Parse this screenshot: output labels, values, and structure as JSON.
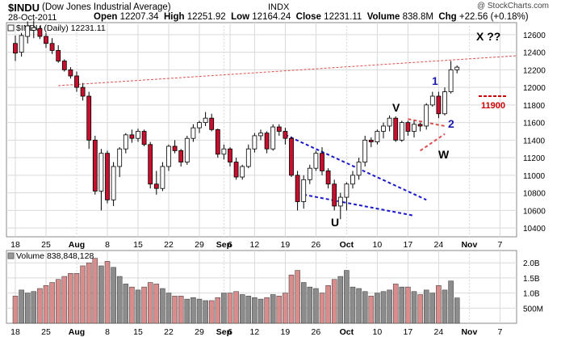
{
  "header": {
    "ticker": "$INDU",
    "name": "(Dow Jones Industrial Average)",
    "exchange": "INDX",
    "date": "28-Oct-2011",
    "open_label": "Open",
    "open": "12207.34",
    "high_label": "High",
    "high": "12251.92",
    "low_label": "Low",
    "low": "12164.24",
    "close_label": "Close",
    "close": "12231.11",
    "volume_label": "Volume",
    "volume": "838.8M",
    "chg_label": "Chg",
    "chg": "+22.56 (+0.18%)",
    "credit": "@ StockCharts.com"
  },
  "chart_data": {
    "type": "candlestick",
    "price_legend": "$INDU (Daily) 12231.11",
    "volume_legend": "Volume 838,848,128",
    "ylim": [
      10300,
      12700
    ],
    "y_ticks": [
      10400,
      10600,
      10800,
      11000,
      11200,
      11400,
      11600,
      11800,
      12000,
      12200,
      12400,
      12600
    ],
    "vol_ticks": [
      "2.0B",
      "1.5B",
      "1.0B",
      "500M"
    ],
    "vol_tick_values": [
      2000,
      1500,
      1000,
      500
    ],
    "vol_max": 2300,
    "x_tick_labels": [
      {
        "i": 0,
        "label": "18",
        "bold": false
      },
      {
        "i": 5,
        "label": "25",
        "bold": false
      },
      {
        "i": 10,
        "label": "Aug",
        "bold": true
      },
      {
        "i": 15,
        "label": "8",
        "bold": false
      },
      {
        "i": 20,
        "label": "15",
        "bold": false
      },
      {
        "i": 25,
        "label": "22",
        "bold": false
      },
      {
        "i": 30,
        "label": "29",
        "bold": false
      },
      {
        "i": 34,
        "label": "Sep",
        "bold": true
      },
      {
        "i": 35,
        "label": "6",
        "bold": false
      },
      {
        "i": 39,
        "label": "12",
        "bold": false
      },
      {
        "i": 44,
        "label": "19",
        "bold": false
      },
      {
        "i": 49,
        "label": "26",
        "bold": false
      },
      {
        "i": 54,
        "label": "Oct",
        "bold": true
      },
      {
        "i": 59,
        "label": "10",
        "bold": false
      },
      {
        "i": 64,
        "label": "17",
        "bold": false
      },
      {
        "i": 69,
        "label": "24",
        "bold": false
      },
      {
        "i": 74,
        "label": "Nov",
        "bold": true
      },
      {
        "i": 79,
        "label": "7",
        "bold": false
      }
    ],
    "candles": [
      {
        "o": 12500,
        "h": 12590,
        "l": 12300,
        "c": 12390,
        "v": 900
      },
      {
        "o": 12400,
        "h": 12620,
        "l": 12350,
        "c": 12590,
        "v": 1100
      },
      {
        "o": 12580,
        "h": 12750,
        "l": 12500,
        "c": 12700,
        "v": 1000
      },
      {
        "o": 12650,
        "h": 12760,
        "l": 12560,
        "c": 12680,
        "v": 1050
      },
      {
        "o": 12670,
        "h": 12700,
        "l": 12550,
        "c": 12580,
        "v": 1150
      },
      {
        "o": 12580,
        "h": 12620,
        "l": 12450,
        "c": 12500,
        "v": 1250
      },
      {
        "o": 12500,
        "h": 12560,
        "l": 12380,
        "c": 12420,
        "v": 1350
      },
      {
        "o": 12420,
        "h": 12480,
        "l": 12280,
        "c": 12300,
        "v": 1450
      },
      {
        "o": 12300,
        "h": 12320,
        "l": 12180,
        "c": 12200,
        "v": 1550
      },
      {
        "o": 12200,
        "h": 12230,
        "l": 12100,
        "c": 12130,
        "v": 1650
      },
      {
        "o": 12130,
        "h": 12180,
        "l": 11950,
        "c": 12000,
        "v": 1650
      },
      {
        "o": 12000,
        "h": 12050,
        "l": 11850,
        "c": 11900,
        "v": 1900
      },
      {
        "o": 11900,
        "h": 11950,
        "l": 11300,
        "c": 11400,
        "v": 2000
      },
      {
        "o": 11400,
        "h": 11450,
        "l": 10780,
        "c": 10820,
        "v": 2150
      },
      {
        "o": 10820,
        "h": 11300,
        "l": 10600,
        "c": 11250,
        "v": 1900
      },
      {
        "o": 11250,
        "h": 11280,
        "l": 10680,
        "c": 10720,
        "v": 2050
      },
      {
        "o": 10720,
        "h": 11150,
        "l": 10650,
        "c": 11100,
        "v": 1850
      },
      {
        "o": 11100,
        "h": 11320,
        "l": 10980,
        "c": 11300,
        "v": 1550
      },
      {
        "o": 11300,
        "h": 11480,
        "l": 11250,
        "c": 11460,
        "v": 1300
      },
      {
        "o": 11460,
        "h": 11520,
        "l": 11370,
        "c": 11420,
        "v": 1200
      },
      {
        "o": 11420,
        "h": 11530,
        "l": 11380,
        "c": 11500,
        "v": 1100
      },
      {
        "o": 11500,
        "h": 11520,
        "l": 11330,
        "c": 11350,
        "v": 1200
      },
      {
        "o": 11350,
        "h": 11380,
        "l": 10850,
        "c": 10900,
        "v": 1350
      },
      {
        "o": 10900,
        "h": 11050,
        "l": 10780,
        "c": 10850,
        "v": 1300
      },
      {
        "o": 10850,
        "h": 11150,
        "l": 10820,
        "c": 11100,
        "v": 1150
      },
      {
        "o": 11100,
        "h": 11350,
        "l": 11050,
        "c": 11330,
        "v": 1000
      },
      {
        "o": 11330,
        "h": 11400,
        "l": 11250,
        "c": 11280,
        "v": 900
      },
      {
        "o": 11280,
        "h": 11300,
        "l": 11100,
        "c": 11150,
        "v": 900
      },
      {
        "o": 11150,
        "h": 11450,
        "l": 11120,
        "c": 11420,
        "v": 800
      },
      {
        "o": 11420,
        "h": 11580,
        "l": 11380,
        "c": 11540,
        "v": 850
      },
      {
        "o": 11540,
        "h": 11620,
        "l": 11480,
        "c": 11600,
        "v": 800
      },
      {
        "o": 11600,
        "h": 11720,
        "l": 11560,
        "c": 11650,
        "v": 750
      },
      {
        "o": 11650,
        "h": 11700,
        "l": 11500,
        "c": 11520,
        "v": 750
      },
      {
        "o": 11520,
        "h": 11530,
        "l": 11200,
        "c": 11240,
        "v": 850
      },
      {
        "o": 11240,
        "h": 11350,
        "l": 11180,
        "c": 11300,
        "v": 1000
      },
      {
        "o": 11300,
        "h": 11320,
        "l": 11100,
        "c": 11150,
        "v": 1000
      },
      {
        "o": 11150,
        "h": 11200,
        "l": 10950,
        "c": 10980,
        "v": 1050
      },
      {
        "o": 10980,
        "h": 11120,
        "l": 10950,
        "c": 11100,
        "v": 950
      },
      {
        "o": 11100,
        "h": 11350,
        "l": 11080,
        "c": 11300,
        "v": 900
      },
      {
        "o": 11300,
        "h": 11480,
        "l": 11260,
        "c": 11450,
        "v": 850
      },
      {
        "o": 11450,
        "h": 11520,
        "l": 11400,
        "c": 11480,
        "v": 800
      },
      {
        "o": 11480,
        "h": 11500,
        "l": 11250,
        "c": 11300,
        "v": 850
      },
      {
        "o": 11300,
        "h": 11580,
        "l": 11280,
        "c": 11550,
        "v": 950
      },
      {
        "o": 11550,
        "h": 11580,
        "l": 11450,
        "c": 11500,
        "v": 900
      },
      {
        "o": 11500,
        "h": 11540,
        "l": 11350,
        "c": 11420,
        "v": 1000
      },
      {
        "o": 11420,
        "h": 11440,
        "l": 10980,
        "c": 11000,
        "v": 1600
      },
      {
        "o": 11000,
        "h": 11050,
        "l": 10600,
        "c": 10700,
        "v": 1750
      },
      {
        "o": 10700,
        "h": 11000,
        "l": 10620,
        "c": 10950,
        "v": 1350
      },
      {
        "o": 10950,
        "h": 11120,
        "l": 10900,
        "c": 11080,
        "v": 1200
      },
      {
        "o": 11080,
        "h": 11280,
        "l": 11050,
        "c": 11250,
        "v": 1150
      },
      {
        "o": 11250,
        "h": 11320,
        "l": 11000,
        "c": 11050,
        "v": 1000
      },
      {
        "o": 11050,
        "h": 11080,
        "l": 10850,
        "c": 10900,
        "v": 1250
      },
      {
        "o": 10900,
        "h": 10950,
        "l": 10600,
        "c": 10650,
        "v": 1450
      },
      {
        "o": 10650,
        "h": 10800,
        "l": 10500,
        "c": 10750,
        "v": 1550
      },
      {
        "o": 10750,
        "h": 10920,
        "l": 10600,
        "c": 10900,
        "v": 1750
      },
      {
        "o": 10900,
        "h": 11050,
        "l": 10850,
        "c": 11000,
        "v": 1200
      },
      {
        "o": 11000,
        "h": 11200,
        "l": 10950,
        "c": 11150,
        "v": 1150
      },
      {
        "o": 11150,
        "h": 11450,
        "l": 11100,
        "c": 11400,
        "v": 1050
      },
      {
        "o": 11400,
        "h": 11430,
        "l": 11320,
        "c": 11380,
        "v": 900
      },
      {
        "o": 11380,
        "h": 11520,
        "l": 11350,
        "c": 11500,
        "v": 1000
      },
      {
        "o": 11500,
        "h": 11600,
        "l": 11420,
        "c": 11560,
        "v": 1050
      },
      {
        "o": 11560,
        "h": 11680,
        "l": 11500,
        "c": 11650,
        "v": 1100
      },
      {
        "o": 11650,
        "h": 11670,
        "l": 11380,
        "c": 11400,
        "v": 1300
      },
      {
        "o": 11400,
        "h": 11620,
        "l": 11380,
        "c": 11600,
        "v": 1200
      },
      {
        "o": 11600,
        "h": 11620,
        "l": 11450,
        "c": 11500,
        "v": 1200
      },
      {
        "o": 11500,
        "h": 11620,
        "l": 11430,
        "c": 11580,
        "v": 1050
      },
      {
        "o": 11580,
        "h": 11600,
        "l": 11500,
        "c": 11560,
        "v": 950
      },
      {
        "o": 11560,
        "h": 11820,
        "l": 11520,
        "c": 11800,
        "v": 1100
      },
      {
        "o": 11800,
        "h": 11950,
        "l": 11780,
        "c": 11900,
        "v": 1000
      },
      {
        "o": 11900,
        "h": 11950,
        "l": 11650,
        "c": 11700,
        "v": 1250
      },
      {
        "o": 11700,
        "h": 12000,
        "l": 11680,
        "c": 11950,
        "v": 1100
      },
      {
        "o": 11950,
        "h": 12300,
        "l": 11930,
        "c": 12200,
        "v": 1400
      },
      {
        "o": 12200,
        "h": 12250,
        "l": 12160,
        "c": 12230,
        "v": 840
      }
    ],
    "annotations": [
      {
        "text": "X ??",
        "color": "#000000",
        "bold": true
      },
      {
        "text": "1",
        "color": "#1a1aaa",
        "bold": true
      },
      {
        "text": "2",
        "color": "#1a1aaa",
        "bold": true
      },
      {
        "text": "V",
        "color": "#000000",
        "bold": true
      },
      {
        "text": "W",
        "color": "#000000",
        "bold": true
      },
      {
        "text": "U",
        "color": "#000000",
        "bold": true
      },
      {
        "text": "11900",
        "color": "#cc0000",
        "bold": true
      }
    ],
    "colors": {
      "up": "#ffffff",
      "down": "#c8102e",
      "vol_up": "#8c8c8c",
      "vol_down": "#d98c8c",
      "grid": "#d9d9d9",
      "trend_red": "#e05050",
      "trend_blue": "#1a1acc"
    }
  }
}
